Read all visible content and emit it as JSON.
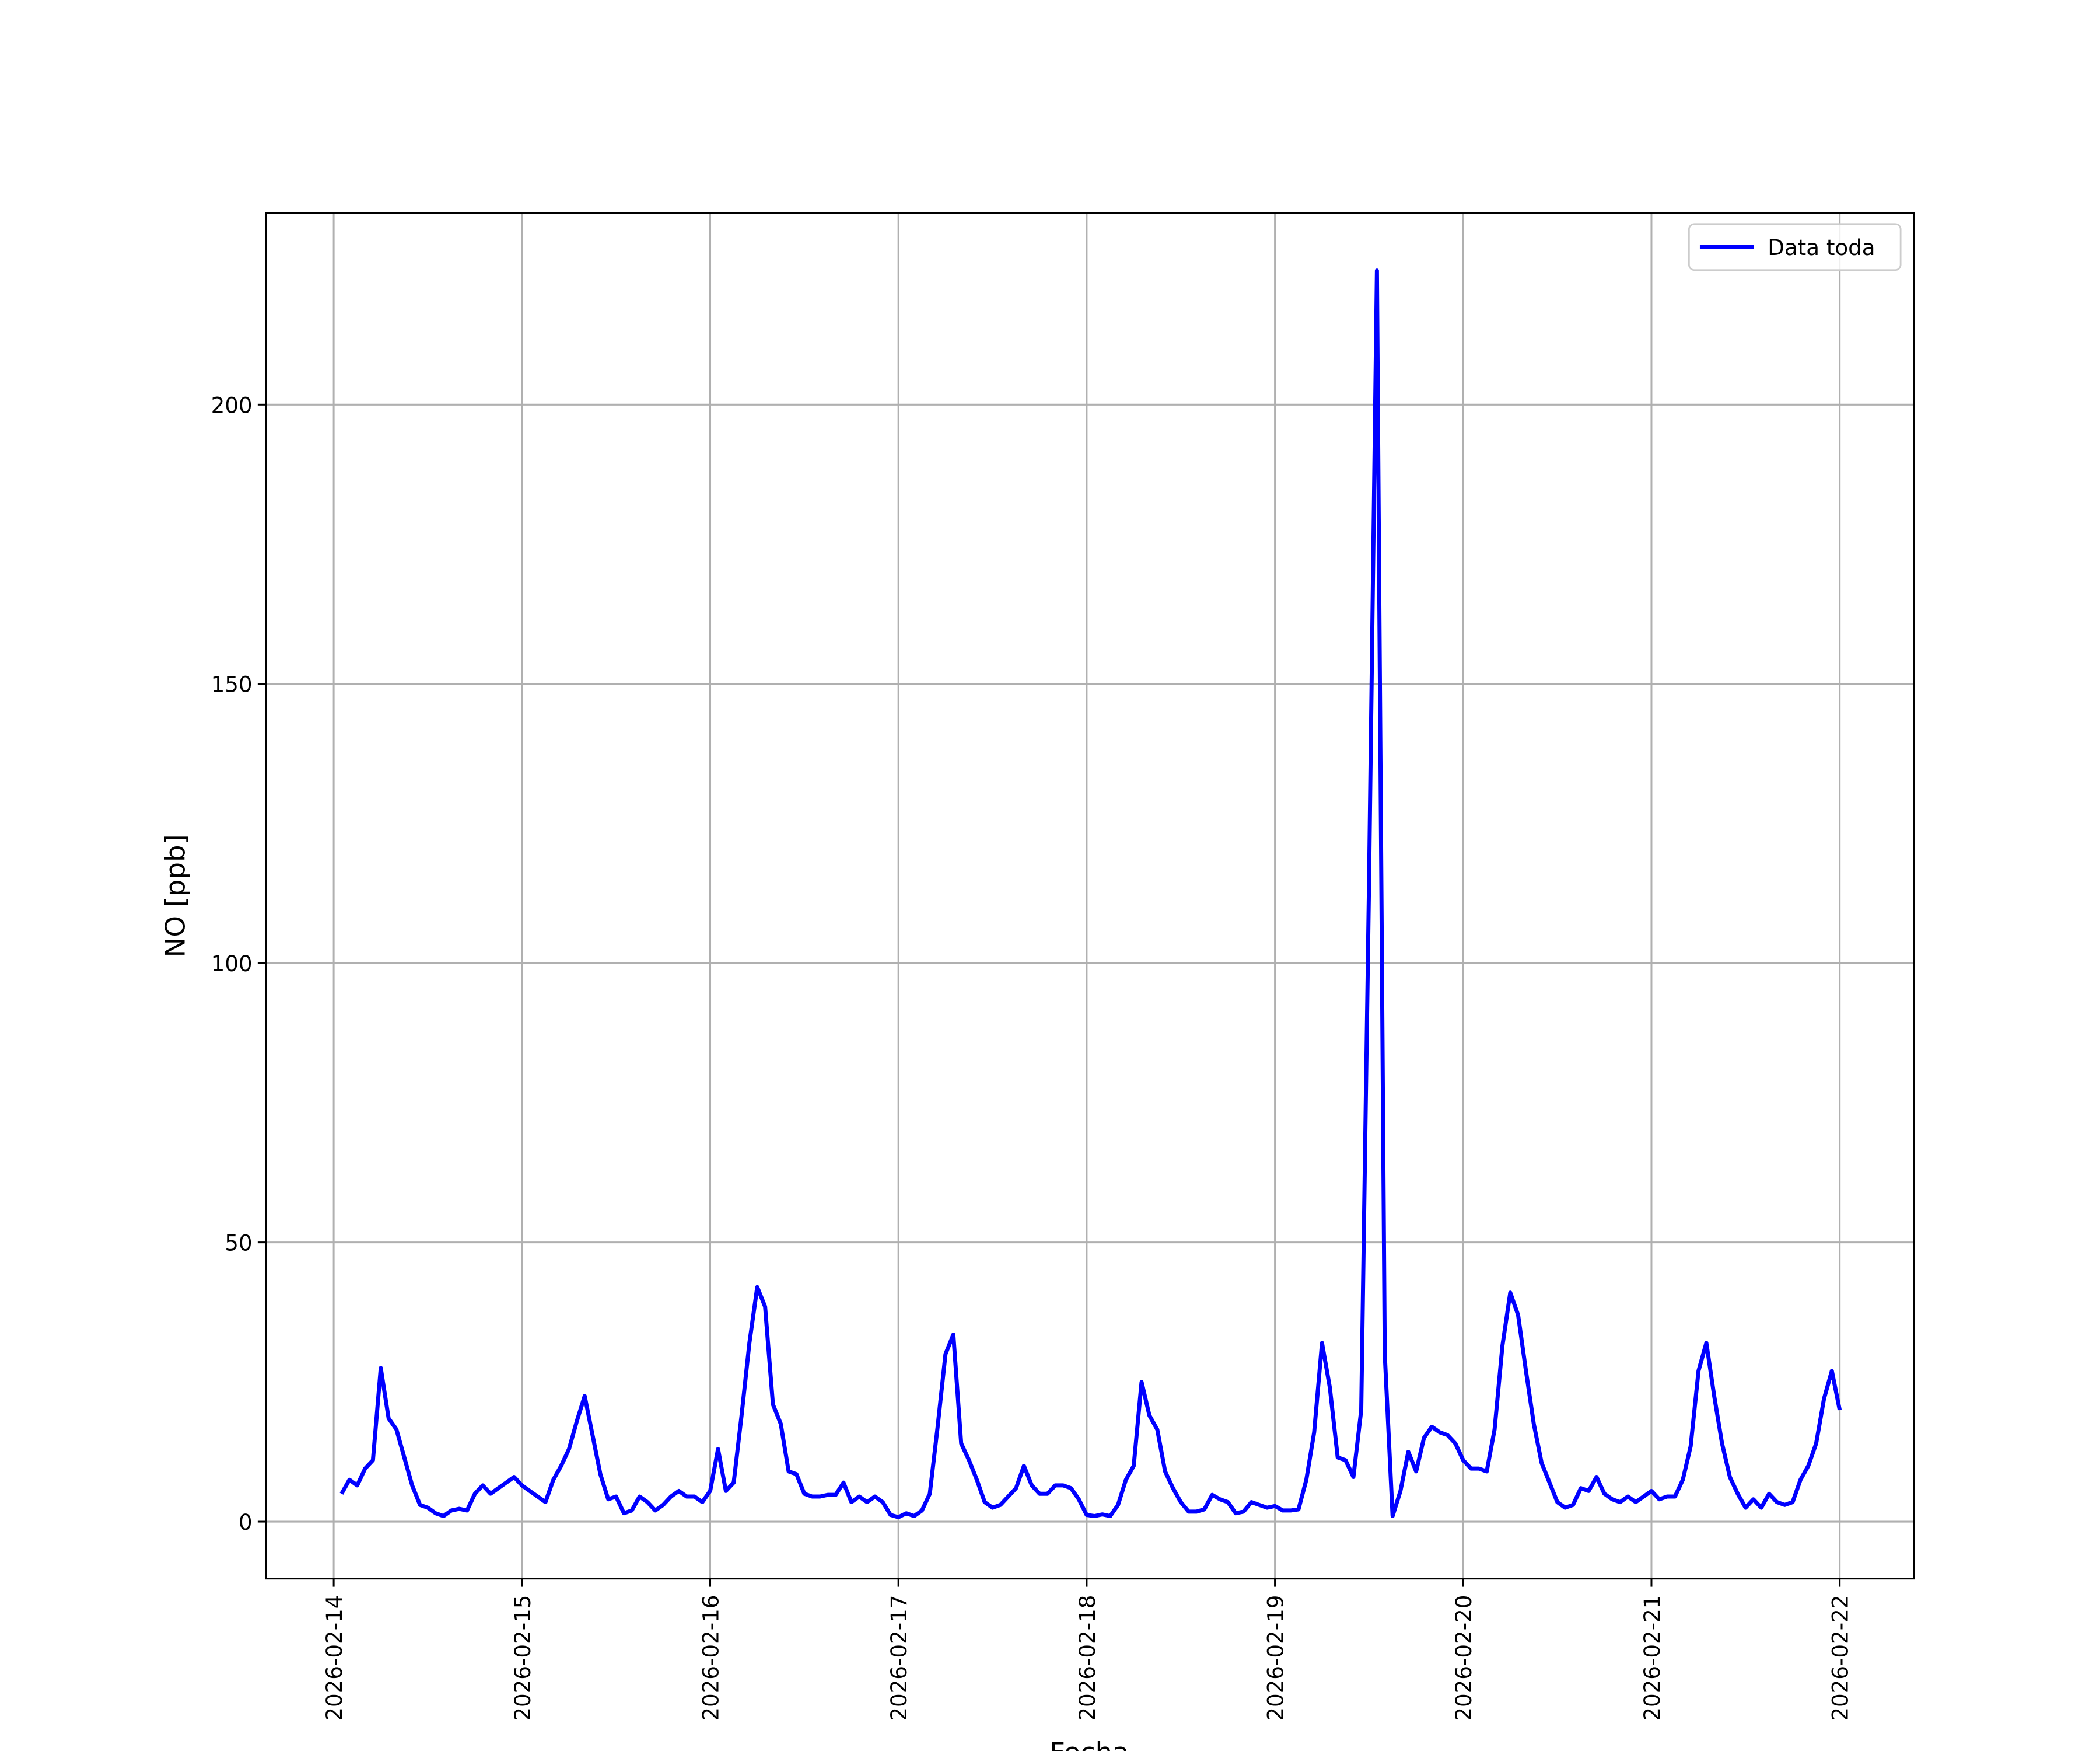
{
  "chart_data": {
    "type": "line",
    "xlabel": "Fecha",
    "ylabel": "NO [ppb]",
    "x": [
      "2026-02-14 01:00",
      "2026-02-14 02:00",
      "2026-02-14 03:00",
      "2026-02-14 04:00",
      "2026-02-14 05:00",
      "2026-02-14 06:00",
      "2026-02-14 07:00",
      "2026-02-14 08:00",
      "2026-02-14 09:00",
      "2026-02-14 10:00",
      "2026-02-14 11:00",
      "2026-02-14 12:00",
      "2026-02-14 13:00",
      "2026-02-14 14:00",
      "2026-02-14 15:00",
      "2026-02-14 16:00",
      "2026-02-14 17:00",
      "2026-02-14 18:00",
      "2026-02-14 19:00",
      "2026-02-14 20:00",
      "2026-02-14 21:00",
      "2026-02-14 22:00",
      "2026-02-14 23:00",
      "2026-02-15 00:00",
      "2026-02-15 01:00",
      "2026-02-15 02:00",
      "2026-02-15 03:00",
      "2026-02-15 04:00",
      "2026-02-15 05:00",
      "2026-02-15 06:00",
      "2026-02-15 07:00",
      "2026-02-15 08:00",
      "2026-02-15 09:00",
      "2026-02-15 10:00",
      "2026-02-15 11:00",
      "2026-02-15 12:00",
      "2026-02-15 13:00",
      "2026-02-15 14:00",
      "2026-02-15 15:00",
      "2026-02-15 16:00",
      "2026-02-15 17:00",
      "2026-02-15 18:00",
      "2026-02-15 19:00",
      "2026-02-15 20:00",
      "2026-02-15 21:00",
      "2026-02-15 22:00",
      "2026-02-15 23:00",
      "2026-02-16 00:00",
      "2026-02-16 01:00",
      "2026-02-16 02:00",
      "2026-02-16 03:00",
      "2026-02-16 04:00",
      "2026-02-16 05:00",
      "2026-02-16 06:00",
      "2026-02-16 07:00",
      "2026-02-16 08:00",
      "2026-02-16 09:00",
      "2026-02-16 10:00",
      "2026-02-16 11:00",
      "2026-02-16 12:00",
      "2026-02-16 13:00",
      "2026-02-16 14:00",
      "2026-02-16 15:00",
      "2026-02-16 16:00",
      "2026-02-16 17:00",
      "2026-02-16 18:00",
      "2026-02-16 19:00",
      "2026-02-16 20:00",
      "2026-02-16 21:00",
      "2026-02-16 22:00",
      "2026-02-16 23:00",
      "2026-02-17 00:00",
      "2026-02-17 01:00",
      "2026-02-17 02:00",
      "2026-02-17 03:00",
      "2026-02-17 04:00",
      "2026-02-17 05:00",
      "2026-02-17 06:00",
      "2026-02-17 07:00",
      "2026-02-17 08:00",
      "2026-02-17 09:00",
      "2026-02-17 10:00",
      "2026-02-17 11:00",
      "2026-02-17 12:00",
      "2026-02-17 13:00",
      "2026-02-17 14:00",
      "2026-02-17 15:00",
      "2026-02-17 16:00",
      "2026-02-17 17:00",
      "2026-02-17 18:00",
      "2026-02-17 19:00",
      "2026-02-17 20:00",
      "2026-02-17 21:00",
      "2026-02-17 22:00",
      "2026-02-17 23:00",
      "2026-02-18 00:00",
      "2026-02-18 01:00",
      "2026-02-18 02:00",
      "2026-02-18 03:00",
      "2026-02-18 04:00",
      "2026-02-18 05:00",
      "2026-02-18 06:00",
      "2026-02-18 07:00",
      "2026-02-18 08:00",
      "2026-02-18 09:00",
      "2026-02-18 10:00",
      "2026-02-18 11:00",
      "2026-02-18 12:00",
      "2026-02-18 13:00",
      "2026-02-18 14:00",
      "2026-02-18 15:00",
      "2026-02-18 16:00",
      "2026-02-18 17:00",
      "2026-02-18 18:00",
      "2026-02-18 19:00",
      "2026-02-18 20:00",
      "2026-02-18 21:00",
      "2026-02-18 22:00",
      "2026-02-18 23:00",
      "2026-02-19 00:00",
      "2026-02-19 01:00",
      "2026-02-19 02:00",
      "2026-02-19 03:00",
      "2026-02-19 04:00",
      "2026-02-19 05:00",
      "2026-02-19 06:00",
      "2026-02-19 07:00",
      "2026-02-19 08:00",
      "2026-02-19 09:00",
      "2026-02-19 10:00",
      "2026-02-19 11:00",
      "2026-02-19 12:00",
      "2026-02-19 13:00",
      "2026-02-19 14:00",
      "2026-02-19 15:00",
      "2026-02-19 16:00",
      "2026-02-19 17:00",
      "2026-02-19 18:00",
      "2026-02-19 19:00",
      "2026-02-19 20:00",
      "2026-02-19 21:00",
      "2026-02-19 22:00",
      "2026-02-19 23:00",
      "2026-02-20 00:00",
      "2026-02-20 01:00",
      "2026-02-20 02:00",
      "2026-02-20 03:00",
      "2026-02-20 04:00",
      "2026-02-20 05:00",
      "2026-02-20 06:00",
      "2026-02-20 07:00",
      "2026-02-20 08:00",
      "2026-02-20 09:00",
      "2026-02-20 10:00",
      "2026-02-20 11:00",
      "2026-02-20 12:00",
      "2026-02-20 13:00",
      "2026-02-20 14:00",
      "2026-02-20 15:00",
      "2026-02-20 16:00",
      "2026-02-20 17:00",
      "2026-02-20 18:00",
      "2026-02-20 19:00",
      "2026-02-20 20:00",
      "2026-02-20 21:00",
      "2026-02-20 22:00",
      "2026-02-20 23:00",
      "2026-02-21 00:00",
      "2026-02-21 01:00",
      "2026-02-21 02:00",
      "2026-02-21 03:00",
      "2026-02-21 04:00",
      "2026-02-21 05:00",
      "2026-02-21 06:00",
      "2026-02-21 07:00",
      "2026-02-21 08:00",
      "2026-02-21 09:00",
      "2026-02-21 10:00",
      "2026-02-21 11:00",
      "2026-02-21 12:00",
      "2026-02-21 13:00",
      "2026-02-21 14:00",
      "2026-02-21 15:00",
      "2026-02-21 16:00",
      "2026-02-21 17:00",
      "2026-02-21 18:00",
      "2026-02-21 19:00",
      "2026-02-21 20:00",
      "2026-02-21 21:00",
      "2026-02-21 22:00",
      "2026-02-21 23:00",
      "2026-02-22 00:00"
    ],
    "series": [
      {
        "name": "Data toda",
        "color": "#0000ff",
        "values": [
          5,
          7.5,
          6.5,
          9.5,
          11,
          27.5,
          18.5,
          16.5,
          11.5,
          6.5,
          3,
          2.5,
          1.5,
          1,
          2,
          2.3,
          2,
          5,
          6.5,
          5,
          6,
          7,
          8,
          6.5,
          5.5,
          4.5,
          3.5,
          7.5,
          10,
          13,
          18,
          22.5,
          15.5,
          8.5,
          4,
          4.5,
          1.5,
          2,
          4.5,
          3.5,
          2,
          3,
          4.5,
          5.5,
          4.5,
          4.5,
          3.5,
          5.5,
          13,
          5.5,
          7,
          19,
          32,
          42,
          38.5,
          21,
          17.5,
          9,
          8.5,
          5,
          4.5,
          4.5,
          4.8,
          4.8,
          7,
          3.5,
          4.5,
          3.5,
          4.5,
          3.5,
          1.2,
          0.8,
          1.5,
          1,
          2,
          5,
          17,
          30,
          33.5,
          14,
          11,
          7.5,
          3.5,
          2.5,
          3,
          4.5,
          6,
          10,
          6.5,
          5,
          5,
          6.5,
          6.5,
          6,
          4,
          1.2,
          1,
          1.3,
          1,
          3,
          7.5,
          10,
          25,
          19,
          16.5,
          9,
          6,
          3.5,
          1.8,
          1.8,
          2.2,
          4.8,
          4,
          3.5,
          1.5,
          1.8,
          3.5,
          3,
          2.5,
          2.8,
          2,
          2,
          2.2,
          7.5,
          16,
          32,
          24,
          11.5,
          11,
          8,
          20,
          115,
          224,
          30,
          1,
          5.5,
          12.5,
          9,
          15,
          17,
          16,
          15.5,
          14,
          11,
          9.5,
          9.5,
          9,
          16.5,
          31.5,
          41,
          37,
          27,
          17.5,
          10.5,
          7,
          3.5,
          2.5,
          3,
          6,
          5.5,
          8,
          5,
          4,
          3.5,
          4.5,
          3.5,
          4.5,
          5.5,
          4,
          4.5,
          4.5,
          7.5,
          13.5,
          27,
          32,
          22.5,
          14,
          8,
          5,
          2.5,
          4,
          2.5,
          5,
          3.5,
          3,
          3.5,
          7.5,
          10,
          14,
          22,
          27,
          20
        ]
      }
    ],
    "xlim": [
      "2026-02-13 15:21",
      "2026-02-22 09:30"
    ],
    "xticks": [
      "2026-02-14",
      "2026-02-15",
      "2026-02-16",
      "2026-02-17",
      "2026-02-18",
      "2026-02-19",
      "2026-02-20",
      "2026-02-21",
      "2026-02-22"
    ],
    "ylim": [
      -10.2,
      234.3
    ],
    "yticks": [
      0,
      50,
      100,
      150,
      200
    ],
    "grid": true,
    "legend": "upper right"
  }
}
